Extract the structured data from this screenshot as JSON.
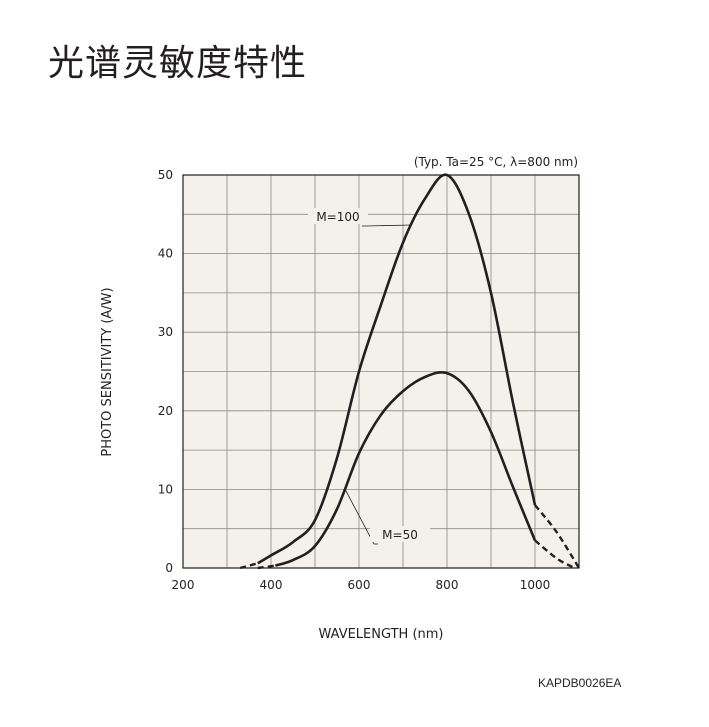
{
  "header": {
    "title": "光谱灵敏度特性"
  },
  "footer": {
    "code": "KAPDB0026EA"
  },
  "chart_data": {
    "type": "line",
    "title": "",
    "conditions": "(Typ. Ta=25 °C, λ=800 nm)",
    "xlabel": "WAVELENGTH (nm)",
    "ylabel": "PHOTO SENSITIVITY (A/W)",
    "xlim": [
      200,
      1100
    ],
    "ylim": [
      0,
      50
    ],
    "x_ticks": [
      200,
      400,
      600,
      800,
      1000
    ],
    "y_ticks": [
      0,
      10,
      20,
      30,
      40,
      50
    ],
    "grid": true,
    "background": "#f4f1ea",
    "line_color": "#231f20",
    "series": [
      {
        "name": "M=100",
        "dashed_low": [
          [
            330,
            0
          ],
          [
            370,
            0.6
          ]
        ],
        "x": [
          370,
          400,
          450,
          500,
          550,
          600,
          650,
          700,
          750,
          800,
          850,
          900,
          950,
          1000
        ],
        "values": [
          0.6,
          1.6,
          3.3,
          6.1,
          14.0,
          25.0,
          33.5,
          41.4,
          47.0,
          50.0,
          45.0,
          35.0,
          21.0,
          8.0
        ],
        "dashed_high": [
          [
            1000,
            8.0
          ],
          [
            1050,
            4.5
          ],
          [
            1100,
            0
          ]
        ]
      },
      {
        "name": "M=50",
        "dashed_low": [
          [
            370,
            0
          ],
          [
            410,
            0.3
          ]
        ],
        "x": [
          410,
          450,
          500,
          550,
          600,
          650,
          700,
          750,
          800,
          850,
          900,
          950,
          1000
        ],
        "values": [
          0.3,
          1.0,
          2.8,
          7.5,
          14.6,
          19.5,
          22.5,
          24.3,
          24.8,
          22.5,
          17.3,
          10.3,
          3.5
        ],
        "dashed_high": [
          [
            1000,
            3.5
          ],
          [
            1050,
            1.2
          ],
          [
            1090,
            0
          ]
        ]
      }
    ],
    "annotations": [
      {
        "text": "M=100",
        "series": "M=100",
        "at_x": 720
      },
      {
        "text": "M=50",
        "series": "M=50",
        "at_x": 568
      }
    ]
  }
}
